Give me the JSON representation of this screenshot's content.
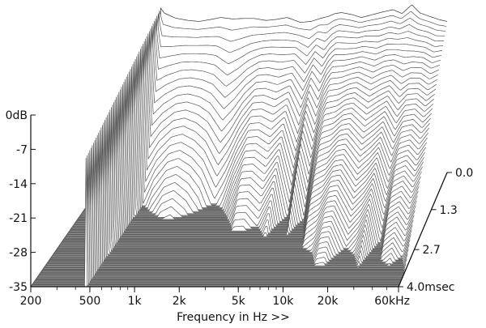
{
  "chart_data": {
    "type": "waterfall-3d",
    "xlabel": "Frequency in Hz >>",
    "x_ticks": [
      {
        "value": 200,
        "label": "200"
      },
      {
        "value": 500,
        "label": "500"
      },
      {
        "value": 1000,
        "label": "1k"
      },
      {
        "value": 2000,
        "label": "2k"
      },
      {
        "value": 5000,
        "label": "5k"
      },
      {
        "value": 10000,
        "label": "10k"
      },
      {
        "value": 20000,
        "label": "20k"
      },
      {
        "value": 60000,
        "label": "60kHz"
      }
    ],
    "x_scale": "log",
    "xlim": [
      200,
      60000
    ],
    "y_ticks": [
      {
        "value": 0,
        "label": "0dB"
      },
      {
        "value": -7,
        "label": "-7"
      },
      {
        "value": -14,
        "label": "-14"
      },
      {
        "value": -21,
        "label": "-21"
      },
      {
        "value": -28,
        "label": "-28"
      },
      {
        "value": -35,
        "label": "-35"
      }
    ],
    "ylim": [
      -35,
      0
    ],
    "t_ticks": [
      {
        "value": 0.0,
        "label": "0.0"
      },
      {
        "value": 1.3,
        "label": "1.3"
      },
      {
        "value": 2.7,
        "label": "2.7"
      },
      {
        "value": 4.0,
        "label": "4.0msec"
      }
    ],
    "tlim": [
      0,
      4.0
    ],
    "slices": 60,
    "surface": [
      {
        "x": 200,
        "env": -35,
        "d": 30
      },
      {
        "x": 450,
        "env": -35,
        "d": 30
      },
      {
        "x": 470,
        "env": -1.5,
        "d": 0.15
      },
      {
        "x": 500,
        "env": -2.5,
        "d": 3.2
      },
      {
        "x": 600,
        "env": -3.5,
        "d": 2.6
      },
      {
        "x": 750,
        "env": -4.0,
        "d": 2.2
      },
      {
        "x": 900,
        "env": -4.2,
        "d": 2.1
      },
      {
        "x": 1100,
        "env": -3.8,
        "d": 2.3
      },
      {
        "x": 1300,
        "env": -3.4,
        "d": 2.6
      },
      {
        "x": 1600,
        "env": -3.7,
        "d": 3.2
      },
      {
        "x": 1900,
        "env": -3.6,
        "d": 2.8
      },
      {
        "x": 2300,
        "env": -3.6,
        "d": 2.2
      },
      {
        "x": 2800,
        "env": -4.0,
        "d": 1.7
      },
      {
        "x": 3300,
        "env": -3.8,
        "d": 1.7
      },
      {
        "x": 4000,
        "env": -3.4,
        "d": 1.9
      },
      {
        "x": 5000,
        "env": -4.4,
        "d": 1.5
      },
      {
        "x": 6000,
        "env": -4.2,
        "d": 2.3
      },
      {
        "x": 7000,
        "env": -3.6,
        "d": 1.6
      },
      {
        "x": 8000,
        "env": -3.2,
        "d": 2.2
      },
      {
        "x": 9000,
        "env": -2.6,
        "d": 1.7
      },
      {
        "x": 10000,
        "env": -2.4,
        "d": 1.4
      },
      {
        "x": 12000,
        "env": -2.8,
        "d": 1.3
      },
      {
        "x": 14000,
        "env": -3.4,
        "d": 1.1
      },
      {
        "x": 16000,
        "env": -3.0,
        "d": 1.1
      },
      {
        "x": 20000,
        "env": -2.3,
        "d": 1.4
      },
      {
        "x": 24000,
        "env": -1.8,
        "d": 1.3
      },
      {
        "x": 28000,
        "env": -2.6,
        "d": 1.1
      },
      {
        "x": 33000,
        "env": -0.8,
        "d": 1.6
      },
      {
        "x": 38000,
        "env": -2.5,
        "d": 1.2
      },
      {
        "x": 45000,
        "env": -3.2,
        "d": 1.1
      },
      {
        "x": 52000,
        "env": -3.8,
        "d": 1.2
      },
      {
        "x": 60000,
        "env": -4.2,
        "d": 1.0
      }
    ]
  }
}
